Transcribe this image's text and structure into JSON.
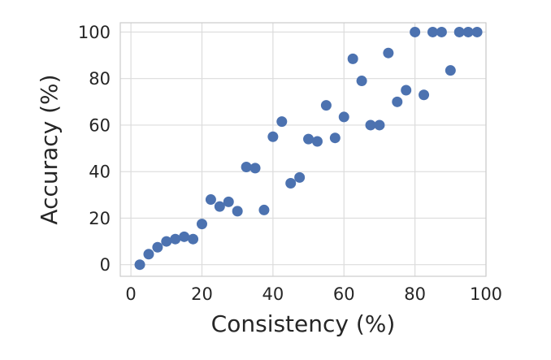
{
  "chart_data": {
    "type": "scatter",
    "title": "",
    "xlabel": "Consistency (%)",
    "ylabel": "Accuracy (%)",
    "xlim": [
      -3,
      100
    ],
    "ylim": [
      -5,
      104
    ],
    "xticks": [
      0,
      20,
      40,
      60,
      80,
      100
    ],
    "yticks": [
      0,
      20,
      40,
      60,
      80,
      100
    ],
    "grid": true,
    "colors": {
      "point": "#4c72b0",
      "grid": "#dcdcdc",
      "frame": "#cccccc",
      "text": "#262626"
    },
    "series": [
      {
        "x": [
          2.5,
          5,
          7.5,
          10,
          12.5,
          15,
          17.5,
          20,
          22.5,
          25,
          27.5,
          30,
          32.5,
          35,
          37.5,
          40,
          42.5,
          45,
          47.5,
          50,
          52.5,
          55,
          57.5,
          60,
          62.5,
          65,
          67.5,
          70,
          72.5,
          75,
          77.5,
          80,
          82.5,
          85,
          87.5,
          90,
          92.5,
          95,
          97.5
        ],
        "y": [
          0,
          4.5,
          7.5,
          10,
          11,
          12,
          11,
          17.5,
          28,
          25,
          27,
          23,
          42,
          41.5,
          23.5,
          55,
          61.5,
          35,
          37.5,
          54,
          53,
          68.5,
          54.5,
          63.5,
          88.5,
          79,
          60,
          60,
          91,
          70,
          75,
          100,
          73,
          100,
          100,
          83.5,
          100,
          100,
          100
        ]
      }
    ]
  }
}
